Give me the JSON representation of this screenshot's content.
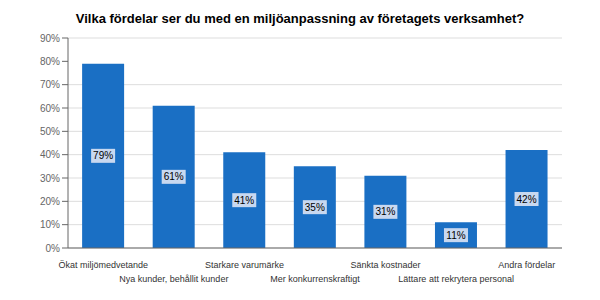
{
  "chart_data": {
    "type": "bar",
    "title": "Vilka fördelar ser du med en miljöanpassning av företagets verksamhet?",
    "categories": [
      "Ökat miljömedvetande",
      "Nya kunder, behållit kunder",
      "Starkare varumärke",
      "Mer konkurrenskraftigt",
      "Sänkta kostnader",
      "Lättare att rekrytera personal",
      "Andra fördelar"
    ],
    "values": [
      79,
      61,
      41,
      35,
      31,
      11,
      42
    ],
    "value_labels": [
      "79%",
      "61%",
      "41%",
      "35%",
      "31%",
      "11%",
      "42%"
    ],
    "data_labels": true,
    "color": "#1a6fc4",
    "ylim": [
      0,
      90
    ],
    "yticks": [
      {
        "value": 0,
        "label": "0%"
      },
      {
        "value": 10,
        "label": "10%"
      },
      {
        "value": 20,
        "label": "20%"
      },
      {
        "value": 30,
        "label": "30%"
      },
      {
        "value": 40,
        "label": "40%"
      },
      {
        "value": 50,
        "label": "50%"
      },
      {
        "value": 60,
        "label": "60%"
      },
      {
        "value": 70,
        "label": "70%"
      },
      {
        "value": 80,
        "label": "80%"
      },
      {
        "value": 90,
        "label": "90%"
      }
    ],
    "grid": true
  }
}
